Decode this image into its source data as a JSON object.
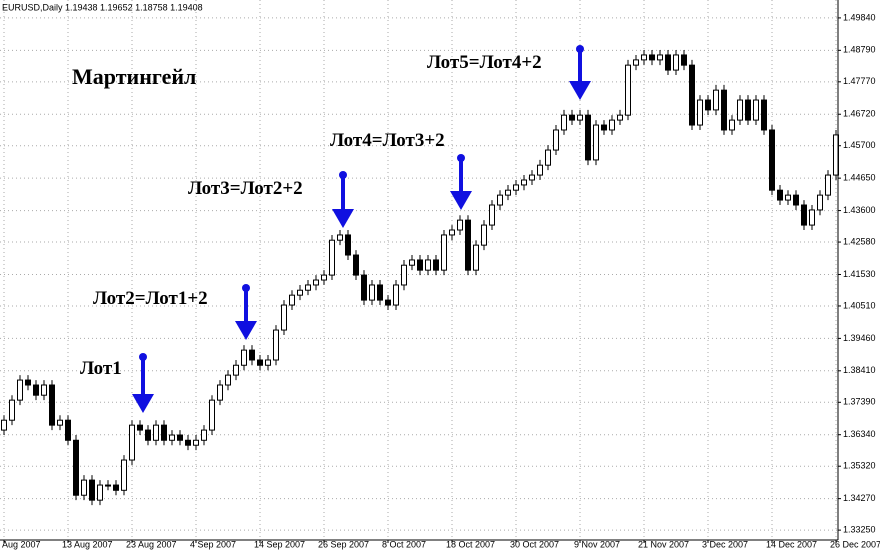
{
  "chart_data": {
    "type": "candlestick",
    "title": "EURUSD,Daily  1.19438 1.19652 1.18758 1.19408",
    "annotations": [
      "Мартингейл",
      "Лот1",
      "Лот2=Лот1+2",
      "Лот3=Лот2+2",
      "Лот4=Лот3+2",
      "Лот5=Лот4+2"
    ],
    "categories": [
      "Aug 2007",
      null,
      null,
      null,
      null,
      null,
      null,
      null,
      "13 Aug 2007",
      null,
      null,
      null,
      null,
      null,
      null,
      null,
      "23 Aug 2007",
      null,
      null,
      null,
      null,
      null,
      null,
      null,
      "4 Sep 2007",
      null,
      null,
      null,
      null,
      null,
      null,
      null,
      "14 Sep 2007",
      null,
      null,
      null,
      null,
      null,
      null,
      null,
      "26 Sep 2007",
      null,
      null,
      null,
      null,
      null,
      null,
      null,
      "8 Oct 2007",
      null,
      null,
      null,
      null,
      null,
      null,
      null,
      "18 Oct 2007",
      null,
      null,
      null,
      null,
      null,
      null,
      null,
      "30 Oct 2007",
      null,
      null,
      null,
      null,
      null,
      null,
      null,
      "9 Nov 2007",
      null,
      null,
      null,
      null,
      null,
      null,
      null,
      "21 Nov 2007",
      null,
      null,
      null,
      null,
      null,
      null,
      null,
      "3 Dec 2007",
      null,
      null,
      null,
      null,
      null,
      null,
      null,
      "14 Dec 2007",
      null,
      null,
      null,
      null,
      null,
      null,
      null,
      "26 Dec 2007"
    ],
    "open": [
      1.3649,
      1.3681,
      1.3746,
      1.3811,
      1.3795,
      1.3762,
      1.3795,
      1.3665,
      1.3681,
      1.3616,
      1.3438,
      1.3487,
      1.3422,
      1.3471,
      1.3471,
      1.3454,
      1.3552,
      1.3665,
      1.3649,
      1.3616,
      1.3665,
      1.3616,
      1.3633,
      1.3616,
      1.36,
      1.3616,
      1.3649,
      1.3746,
      1.3795,
      1.3827,
      1.3859,
      1.3908,
      1.3876,
      1.3859,
      1.3876,
      1.3973,
      1.4054,
      1.4086,
      1.4102,
      1.4119,
      1.4135,
      1.4151,
      1.4264,
      1.4281,
      1.4216,
      1.4151,
      1.407,
      1.4119,
      1.407,
      1.4054,
      1.4119,
      1.4183,
      1.42,
      1.4167,
      1.42,
      1.4167,
      1.4281,
      1.4297,
      1.4329,
      1.4167,
      1.4248,
      1.4313,
      1.4378,
      1.441,
      1.4426,
      1.4443,
      1.4459,
      1.4475,
      1.4507,
      1.4556,
      1.4621,
      1.4669,
      1.4653,
      1.4669,
      1.4524,
      1.4637,
      1.4621,
      1.4653,
      1.4669,
      1.4831,
      1.4848,
      1.4864,
      1.4848,
      1.4864,
      1.4815,
      1.4864,
      1.4831,
      1.4637,
      1.4718,
      1.4686,
      1.475,
      1.4621,
      1.4653,
      1.4718,
      1.4653,
      1.4718,
      1.4621,
      1.4426,
      1.4394,
      1.441,
      1.4378,
      1.4313,
      1.4362,
      1.441,
      1.4475
    ],
    "high": [
      1.3697,
      1.3762,
      1.3827,
      1.3827,
      1.3811,
      1.3811,
      1.3811,
      1.3697,
      1.3697,
      1.3633,
      1.3503,
      1.3503,
      1.3487,
      1.3487,
      1.3487,
      1.3568,
      1.3681,
      1.3681,
      1.3665,
      1.3681,
      1.3681,
      1.3649,
      1.3649,
      1.3633,
      1.3633,
      1.3665,
      1.3762,
      1.3811,
      1.3843,
      1.3876,
      1.3924,
      1.3924,
      1.3892,
      1.3892,
      1.3989,
      1.407,
      1.4102,
      1.4119,
      1.4135,
      1.4151,
      1.4167,
      1.4281,
      1.4297,
      1.4297,
      1.4232,
      1.4167,
      1.4135,
      1.4135,
      1.4086,
      1.4135,
      1.42,
      1.4216,
      1.4216,
      1.4216,
      1.4216,
      1.4297,
      1.4313,
      1.4345,
      1.4345,
      1.4264,
      1.4329,
      1.4394,
      1.4426,
      1.4443,
      1.4459,
      1.4475,
      1.4491,
      1.4524,
      1.4572,
      1.4637,
      1.4686,
      1.4686,
      1.4686,
      1.4686,
      1.4653,
      1.4653,
      1.4669,
      1.4686,
      1.4848,
      1.4864,
      1.488,
      1.488,
      1.488,
      1.488,
      1.488,
      1.488,
      1.4848,
      1.4734,
      1.4734,
      1.4767,
      1.4767,
      1.4669,
      1.4734,
      1.4734,
      1.4734,
      1.4734,
      1.4637,
      1.4443,
      1.4426,
      1.4426,
      1.4394,
      1.4378,
      1.4426,
      1.4491,
      1.4621
    ],
    "low": [
      1.3633,
      1.3665,
      1.373,
      1.3778,
      1.3746,
      1.3746,
      1.3649,
      1.3649,
      1.36,
      1.3422,
      1.3422,
      1.3406,
      1.3406,
      1.3454,
      1.3438,
      1.3438,
      1.3535,
      1.3633,
      1.36,
      1.36,
      1.36,
      1.36,
      1.36,
      1.3584,
      1.3584,
      1.36,
      1.3633,
      1.373,
      1.3778,
      1.3811,
      1.3843,
      1.3859,
      1.3843,
      1.3843,
      1.3859,
      1.3957,
      1.4038,
      1.407,
      1.4086,
      1.4102,
      1.4119,
      1.4135,
      1.4248,
      1.42,
      1.4135,
      1.4054,
      1.4054,
      1.4054,
      1.4038,
      1.4038,
      1.4102,
      1.4167,
      1.4151,
      1.4151,
      1.4151,
      1.4151,
      1.4264,
      1.4281,
      1.4151,
      1.4151,
      1.4232,
      1.4297,
      1.4362,
      1.4394,
      1.441,
      1.4426,
      1.4443,
      1.4459,
      1.4491,
      1.454,
      1.4605,
      1.4637,
      1.4637,
      1.4507,
      1.4507,
      1.4605,
      1.4605,
      1.4637,
      1.4653,
      1.4815,
      1.4831,
      1.4831,
      1.4831,
      1.4799,
      1.4799,
      1.4815,
      1.4621,
      1.4621,
      1.4669,
      1.4669,
      1.4605,
      1.4605,
      1.4637,
      1.4637,
      1.4637,
      1.4605,
      1.441,
      1.4378,
      1.4378,
      1.4362,
      1.4297,
      1.4297,
      1.4345,
      1.4394,
      1.4459
    ],
    "close": [
      1.3681,
      1.3746,
      1.3811,
      1.3795,
      1.3762,
      1.3795,
      1.3665,
      1.3681,
      1.3616,
      1.3438,
      1.3487,
      1.3422,
      1.3471,
      1.3471,
      1.3454,
      1.3552,
      1.3665,
      1.3649,
      1.3616,
      1.3665,
      1.3616,
      1.3633,
      1.3616,
      1.36,
      1.3616,
      1.3649,
      1.3746,
      1.3795,
      1.3827,
      1.3859,
      1.3908,
      1.3876,
      1.3859,
      1.3876,
      1.3973,
      1.4054,
      1.4086,
      1.4102,
      1.4119,
      1.4135,
      1.4151,
      1.4264,
      1.4281,
      1.4216,
      1.4151,
      1.407,
      1.4119,
      1.407,
      1.4054,
      1.4119,
      1.4183,
      1.42,
      1.4167,
      1.42,
      1.4167,
      1.4281,
      1.4297,
      1.4329,
      1.4167,
      1.4248,
      1.4313,
      1.4378,
      1.441,
      1.4426,
      1.4443,
      1.4459,
      1.4475,
      1.4507,
      1.4556,
      1.4621,
      1.4669,
      1.4653,
      1.4669,
      1.4524,
      1.4637,
      1.4621,
      1.4653,
      1.4669,
      1.4831,
      1.4848,
      1.4864,
      1.4848,
      1.4864,
      1.4815,
      1.4864,
      1.4831,
      1.4637,
      1.4718,
      1.4686,
      1.475,
      1.4621,
      1.4653,
      1.4718,
      1.4653,
      1.4718,
      1.4621,
      1.4426,
      1.4394,
      1.441,
      1.4378,
      1.4313,
      1.4362,
      1.441,
      1.4475,
      1.4605
    ],
    "ylim": [
      1.3293,
      1.5042
    ],
    "yticks": [
      {
        "value": 1.4984,
        "label": "1.49840"
      },
      {
        "value": 1.4879,
        "label": "1.48790"
      },
      {
        "value": 1.4777,
        "label": "1.47770"
      },
      {
        "value": 1.4672,
        "label": "1.46720"
      },
      {
        "value": 1.457,
        "label": "1.45700"
      },
      {
        "value": 1.4465,
        "label": "1.44650"
      },
      {
        "value": 1.436,
        "label": "1.43600"
      },
      {
        "value": 1.4258,
        "label": "1.42580"
      },
      {
        "value": 1.4153,
        "label": "1.41530"
      },
      {
        "value": 1.4051,
        "label": "1.40510"
      },
      {
        "value": 1.3946,
        "label": "1.39460"
      },
      {
        "value": 1.3841,
        "label": "1.38410"
      },
      {
        "value": 1.3739,
        "label": "1.37390"
      },
      {
        "value": 1.3634,
        "label": "1.36340"
      },
      {
        "value": 1.3532,
        "label": "1.35320"
      },
      {
        "value": 1.3427,
        "label": "1.34270"
      },
      {
        "value": 1.3325,
        "label": "1.33250"
      }
    ],
    "grid": true,
    "up_color": "#ffffff",
    "down_color": "#000000"
  }
}
